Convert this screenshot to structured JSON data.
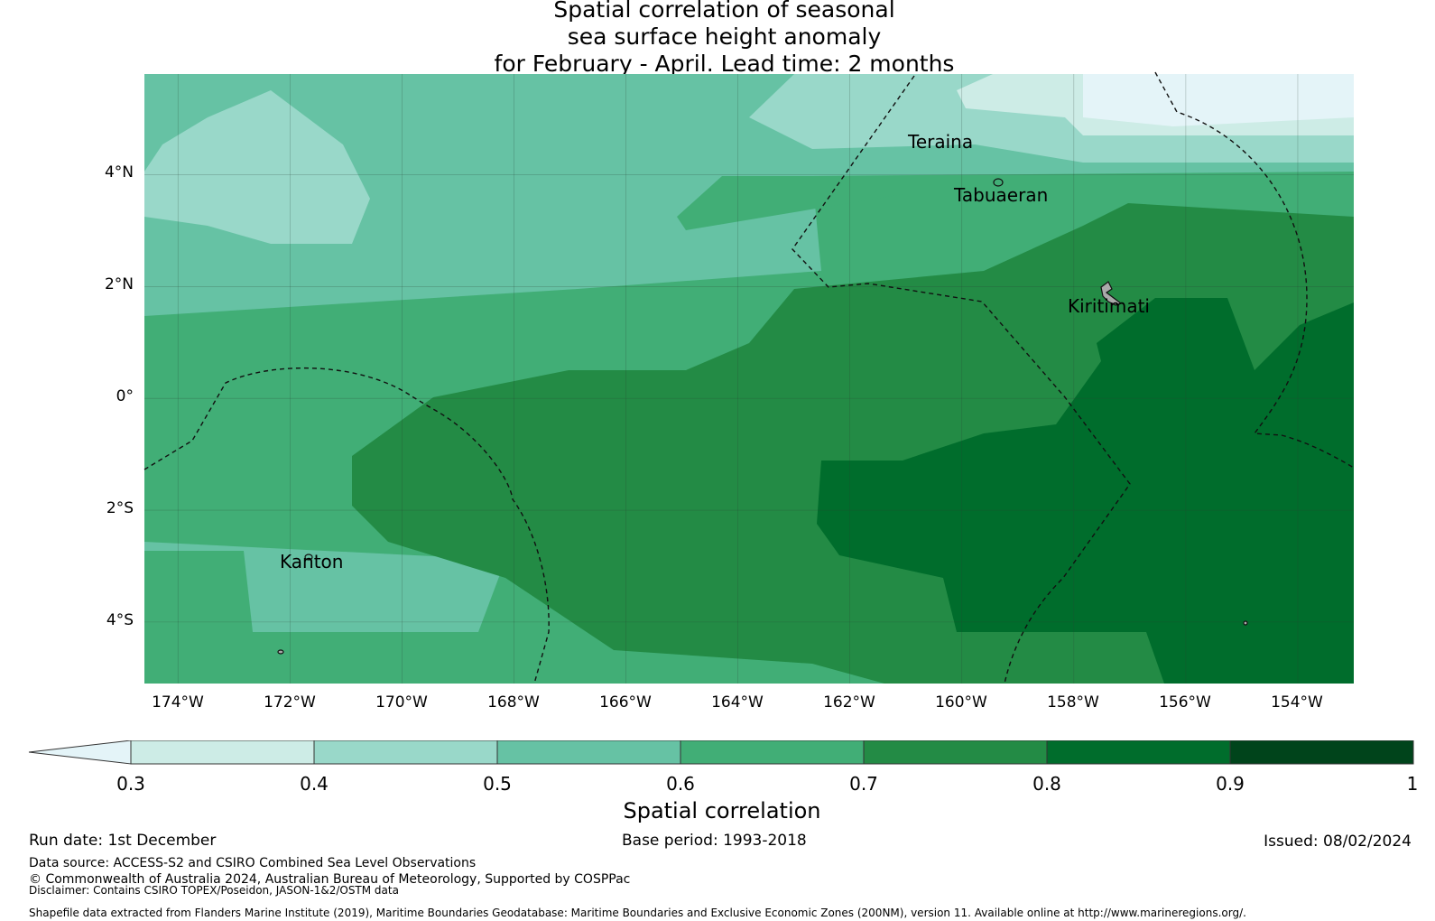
{
  "title": {
    "line1": "Spatial correlation of seasonal",
    "line2": "sea surface height anomaly",
    "line3": "for February - April. Lead time: 2 months"
  },
  "map": {
    "extent": {
      "lon_min": -174.6,
      "lon_max": -153.0,
      "lat_min": -5.1,
      "lat_max": 5.8
    },
    "lon_ticks": [
      {
        "value": -174,
        "label": "174°W"
      },
      {
        "value": -172,
        "label": "172°W"
      },
      {
        "value": -170,
        "label": "170°W"
      },
      {
        "value": -168,
        "label": "168°W"
      },
      {
        "value": -166,
        "label": "166°W"
      },
      {
        "value": -164,
        "label": "164°W"
      },
      {
        "value": -162,
        "label": "162°W"
      },
      {
        "value": -160,
        "label": "160°W"
      },
      {
        "value": -158,
        "label": "158°W"
      },
      {
        "value": -156,
        "label": "156°W"
      },
      {
        "value": -154,
        "label": "154°W"
      }
    ],
    "lat_ticks": [
      {
        "value": 4,
        "label": "4°N"
      },
      {
        "value": 2,
        "label": "2°N"
      },
      {
        "value": 0,
        "label": "0°"
      },
      {
        "value": -2,
        "label": "2°S"
      },
      {
        "value": -4,
        "label": "4°S"
      }
    ],
    "places": [
      {
        "name": "Teraina",
        "lon": -161.0,
        "lat": 4.65
      },
      {
        "name": "Tabuaeran",
        "lon": -159.35,
        "lat": 3.75
      },
      {
        "name": "Kiritimati",
        "lon": -157.4,
        "lat": 1.7
      },
      {
        "name": "Kanton",
        "lon": -171.7,
        "lat": -3.1
      }
    ]
  },
  "colorbar": {
    "ticks": [
      "0.3",
      "0.4",
      "0.5",
      "0.6",
      "0.7",
      "0.8",
      "0.9",
      "1"
    ],
    "colors": [
      "#e4f4f8",
      "#cdece6",
      "#99d8c9",
      "#66c2a4",
      "#41ae76",
      "#238b45",
      "#006d2c",
      "#00441b"
    ],
    "label": "Spatial correlation"
  },
  "footer": {
    "run_date": "Run date: 1st December",
    "base_period": "Base period: 1993-2018",
    "issued": "Issued: 08/02/2024",
    "data_source": "Data source: ACCESS-S2 and CSIRO Combined Sea Level Observations",
    "copyright": "© Commonwealth of Australia 2024, Australian Bureau of Meteorology, Supported by COSPPac",
    "disclaimer": "Disclaimer: Contains CSIRO TOPEX/Poseidon, JASON-1&2/OSTM data",
    "shapefile": "Shapefile data extracted from Flanders Marine Institute (2019), Maritime Boundaries Geodatabase: Maritime Boundaries and Exclusive Economic Zones (200NM), version 11. Available online at http://www.marineregions.org/."
  }
}
